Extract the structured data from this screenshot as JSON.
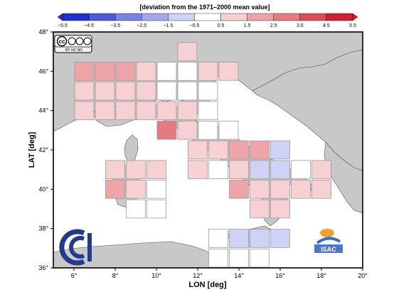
{
  "colorbar": {
    "title": "[deviation from the 1971–2000 mean value]",
    "ticks": [
      "−5.5",
      "−4.5",
      "−3.5",
      "−2.5",
      "−1.5",
      "−0.5",
      "0.5",
      "1.5",
      "2.5",
      "3.5",
      "4.5",
      "5.5"
    ],
    "colors": [
      "#1f2fd1",
      "#4d58db",
      "#7a82e4",
      "#a3a8ee",
      "#cfd2f7",
      "#ffffff",
      "#f6d0d2",
      "#eea5aa",
      "#e57a82",
      "#dc4d58",
      "#d41f30"
    ]
  },
  "axes": {
    "xlabel": "LON [deg]",
    "ylabel": "LAT [deg]",
    "x_ticks": [
      "6°",
      "8°",
      "10°",
      "12°",
      "14°",
      "16°",
      "18°",
      "20°"
    ],
    "y_ticks": [
      "36°",
      "38°",
      "40°",
      "42°",
      "44°",
      "46°",
      "48°"
    ],
    "xlim": [
      5,
      20
    ],
    "ylim": [
      36,
      48
    ]
  },
  "license_badge": {
    "cc": "cc",
    "terms": "BY  NC  ND"
  },
  "logos": {
    "right_logo_text": "ISAC",
    "left_logo": "cnr-logo"
  },
  "map": {
    "land_color": "#c8c8c8",
    "sea_color": "#ffffff",
    "cell_size_deg": 1,
    "cells": [
      {
        "lon": 6.5,
        "lat": 46,
        "value": 1.5
      },
      {
        "lon": 7.5,
        "lat": 46,
        "value": 1.5
      },
      {
        "lon": 8.5,
        "lat": 46,
        "value": 1.5
      },
      {
        "lon": 9.5,
        "lat": 46,
        "value": 1.0
      },
      {
        "lon": 10.5,
        "lat": 46,
        "value": 0.0
      },
      {
        "lon": 11.5,
        "lat": 46,
        "value": 0.0
      },
      {
        "lon": 12.5,
        "lat": 46,
        "value": 0.8
      },
      {
        "lon": 13.5,
        "lat": 46,
        "value": 0.8
      },
      {
        "lon": 11.5,
        "lat": 47,
        "value": 1.0
      },
      {
        "lon": 6.5,
        "lat": 45,
        "value": 1.0
      },
      {
        "lon": 7.5,
        "lat": 45,
        "value": 1.0
      },
      {
        "lon": 8.5,
        "lat": 45,
        "value": 1.0
      },
      {
        "lon": 9.5,
        "lat": 45,
        "value": 0.8
      },
      {
        "lon": 10.5,
        "lat": 45,
        "value": 0.0
      },
      {
        "lon": 11.5,
        "lat": 45,
        "value": 0.0
      },
      {
        "lon": 12.5,
        "lat": 45,
        "value": 0.0
      },
      {
        "lon": 6.5,
        "lat": 44,
        "value": 0.8
      },
      {
        "lon": 7.5,
        "lat": 44,
        "value": 0.8
      },
      {
        "lon": 8.5,
        "lat": 44,
        "value": 0.8
      },
      {
        "lon": 9.5,
        "lat": 44,
        "value": 0.8
      },
      {
        "lon": 10.5,
        "lat": 44,
        "value": 0.8
      },
      {
        "lon": 11.5,
        "lat": 44,
        "value": 0.8
      },
      {
        "lon": 12.5,
        "lat": 44,
        "value": 0.0
      },
      {
        "lon": 10.5,
        "lat": 43,
        "value": 2.5
      },
      {
        "lon": 11.5,
        "lat": 43,
        "value": 0.8
      },
      {
        "lon": 12.5,
        "lat": 43,
        "value": 0.0
      },
      {
        "lon": 13.5,
        "lat": 43,
        "value": 0.0
      },
      {
        "lon": 12.0,
        "lat": 42,
        "value": 1.0
      },
      {
        "lon": 13.0,
        "lat": 42,
        "value": 0.8
      },
      {
        "lon": 14.0,
        "lat": 42,
        "value": 1.5
      },
      {
        "lon": 15.0,
        "lat": 42,
        "value": 1.5
      },
      {
        "lon": 16.0,
        "lat": 42,
        "value": -0.8
      },
      {
        "lon": 8.0,
        "lat": 41,
        "value": 1.0
      },
      {
        "lon": 9.0,
        "lat": 41,
        "value": 1.0
      },
      {
        "lon": 10.0,
        "lat": 41,
        "value": 1.0
      },
      {
        "lon": 12.0,
        "lat": 41,
        "value": 0.8
      },
      {
        "lon": 13.0,
        "lat": 41,
        "value": 0.0
      },
      {
        "lon": 14.0,
        "lat": 41,
        "value": 0.8
      },
      {
        "lon": 15.0,
        "lat": 41,
        "value": -0.8
      },
      {
        "lon": 16.0,
        "lat": 41,
        "value": -0.8
      },
      {
        "lon": 17.0,
        "lat": 41,
        "value": 0.0
      },
      {
        "lon": 18.0,
        "lat": 41,
        "value": 1.0
      },
      {
        "lon": 8.0,
        "lat": 40,
        "value": 1.5
      },
      {
        "lon": 9.0,
        "lat": 40,
        "value": 1.0
      },
      {
        "lon": 10.0,
        "lat": 40,
        "value": 0.0
      },
      {
        "lon": 14.0,
        "lat": 40,
        "value": 1.5
      },
      {
        "lon": 15.0,
        "lat": 40,
        "value": 0.8
      },
      {
        "lon": 16.0,
        "lat": 40,
        "value": 0.8
      },
      {
        "lon": 17.0,
        "lat": 40,
        "value": 1.0
      },
      {
        "lon": 18.0,
        "lat": 40,
        "value": 1.0
      },
      {
        "lon": 9.0,
        "lat": 39,
        "value": 0.0
      },
      {
        "lon": 10.0,
        "lat": 39,
        "value": 0.0
      },
      {
        "lon": 15.0,
        "lat": 39,
        "value": 0.8
      },
      {
        "lon": 16.0,
        "lat": 39,
        "value": 1.0
      },
      {
        "lon": 13.0,
        "lat": 37.5,
        "value": 0.0
      },
      {
        "lon": 14.0,
        "lat": 37.5,
        "value": -0.8
      },
      {
        "lon": 15.0,
        "lat": 37.5,
        "value": -0.8
      },
      {
        "lon": 16.0,
        "lat": 37.5,
        "value": -0.8
      },
      {
        "lon": 13.0,
        "lat": 36.5,
        "value": 0.0
      },
      {
        "lon": 14.0,
        "lat": 36.5,
        "value": 0.0
      },
      {
        "lon": 15.0,
        "lat": 36.5,
        "value": 0.0
      }
    ]
  }
}
